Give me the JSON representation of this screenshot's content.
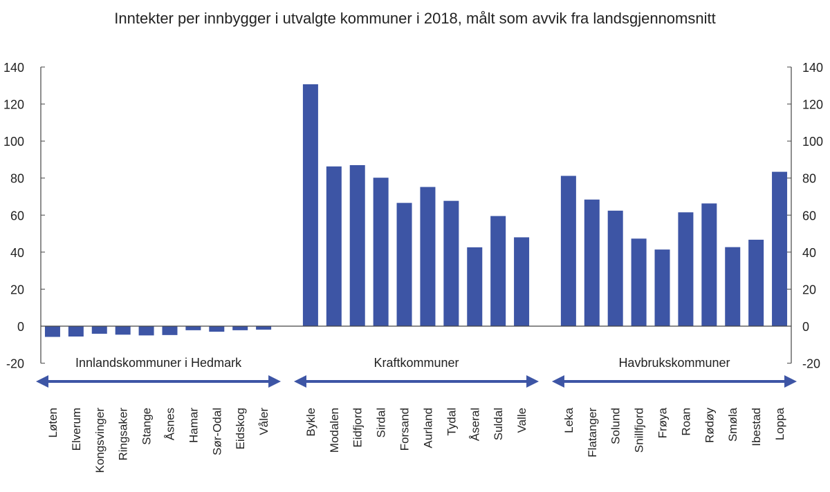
{
  "chart_data": {
    "type": "bar",
    "title": "Inntekter per innbygger i utvalgte kommuner i 2018, målt som avvik fra landsgjennomsnitt",
    "xlabel": "",
    "ylabel": "",
    "ylim": [
      -20,
      140
    ],
    "yticks": [
      140,
      120,
      100,
      80,
      60,
      40,
      20,
      0,
      -20
    ],
    "grid": false,
    "bar_color": "#3d55a5",
    "groups": [
      {
        "name": "Innlandskommuner i Hedmark",
        "categories": [
          "Løten",
          "Elverum",
          "Kongsvinger",
          "Ringsaker",
          "Stange",
          "Åsnes",
          "Hamar",
          "Sør-Odal",
          "Eidskog",
          "Våler"
        ],
        "values": [
          -5.8,
          -5.6,
          -4.1,
          -4.6,
          -5.0,
          -4.8,
          -2.2,
          -3.0,
          -2.2,
          -1.9
        ]
      },
      {
        "name": "Kraftkommuner",
        "categories": [
          "Bykle",
          "Modalen",
          "Eidfjord",
          "Sirdal",
          "Forsand",
          "Aurland",
          "Tydal",
          "Åseral",
          "Suldal",
          "Valle"
        ],
        "values": [
          130.7,
          86.3,
          87.0,
          80.2,
          66.6,
          75.2,
          67.7,
          42.6,
          59.5,
          48.0
        ]
      },
      {
        "name": "Havbrukskommuner",
        "categories": [
          "Leka",
          "Flatanger",
          "Solund",
          "Snillfjord",
          "Frøya",
          "Roan",
          "Rødøy",
          "Smøla",
          "Ibestad",
          "Loppa"
        ],
        "values": [
          81.2,
          68.4,
          62.4,
          47.3,
          41.4,
          61.5,
          66.3,
          42.7,
          46.7,
          83.4
        ]
      }
    ]
  }
}
